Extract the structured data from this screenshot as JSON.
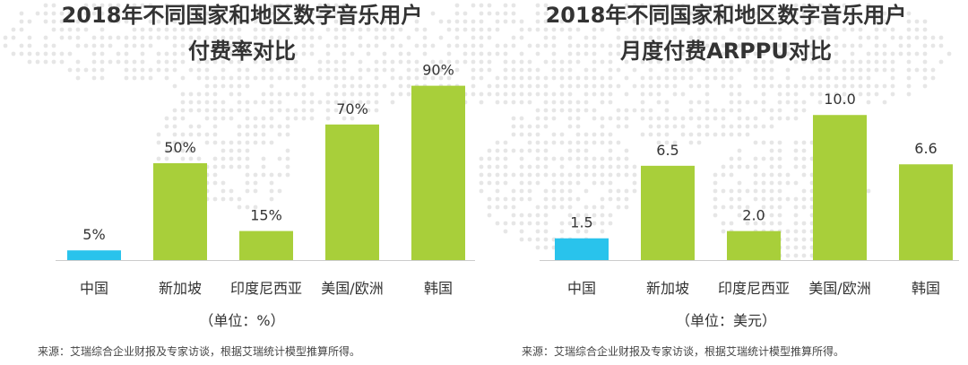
{
  "chart_data": [
    {
      "type": "bar",
      "title": "2018年不同国家和地区数字音乐用户付费率对比",
      "title_lines": [
        "2018年不同国家和地区数字音乐用户",
        "付费率对比"
      ],
      "categories": [
        "中国",
        "新加坡",
        "印度尼西亚",
        "美国/欧洲",
        "韩国"
      ],
      "values": [
        5,
        50,
        15,
        70,
        90
      ],
      "value_labels": [
        "5%",
        "50%",
        "15%",
        "70%",
        "90%"
      ],
      "bar_colors": [
        "#29c3ec",
        "#a8cf3a",
        "#a8cf3a",
        "#a8cf3a",
        "#a8cf3a"
      ],
      "ylim": [
        0,
        100
      ],
      "xlabel": "",
      "ylabel": "",
      "grid": false,
      "unit": "（单位：%）",
      "source": "来源：艾瑞综合企业财报及专家访谈，根据艾瑞统计模型推算所得。"
    },
    {
      "type": "bar",
      "title": "2018年不同国家和地区数字音乐用户月度付费ARPPU对比",
      "title_lines": [
        "2018年不同国家和地区数字音乐用户",
        "月度付费ARPPU对比"
      ],
      "categories": [
        "中国",
        "新加坡",
        "印度尼西亚",
        "美国/欧洲",
        "韩国"
      ],
      "values": [
        1.5,
        6.5,
        2.0,
        10.0,
        6.6
      ],
      "value_labels": [
        "1.5",
        "6.5",
        "2.0",
        "10.0",
        "6.6"
      ],
      "bar_colors": [
        "#29c3ec",
        "#a8cf3a",
        "#a8cf3a",
        "#a8cf3a",
        "#a8cf3a"
      ],
      "ylim": [
        0,
        10.2
      ],
      "xlabel": "",
      "ylabel": "",
      "grid": false,
      "unit": "（单位：美元）",
      "source": "来源：艾瑞综合企业财报及专家访谈，根据艾瑞统计模型推算所得。"
    }
  ],
  "colors": {
    "accent_blue": "#29c3ec",
    "accent_green": "#a8cf3a",
    "axis": "#cccccc",
    "background_dots": "#e6e6e6"
  }
}
